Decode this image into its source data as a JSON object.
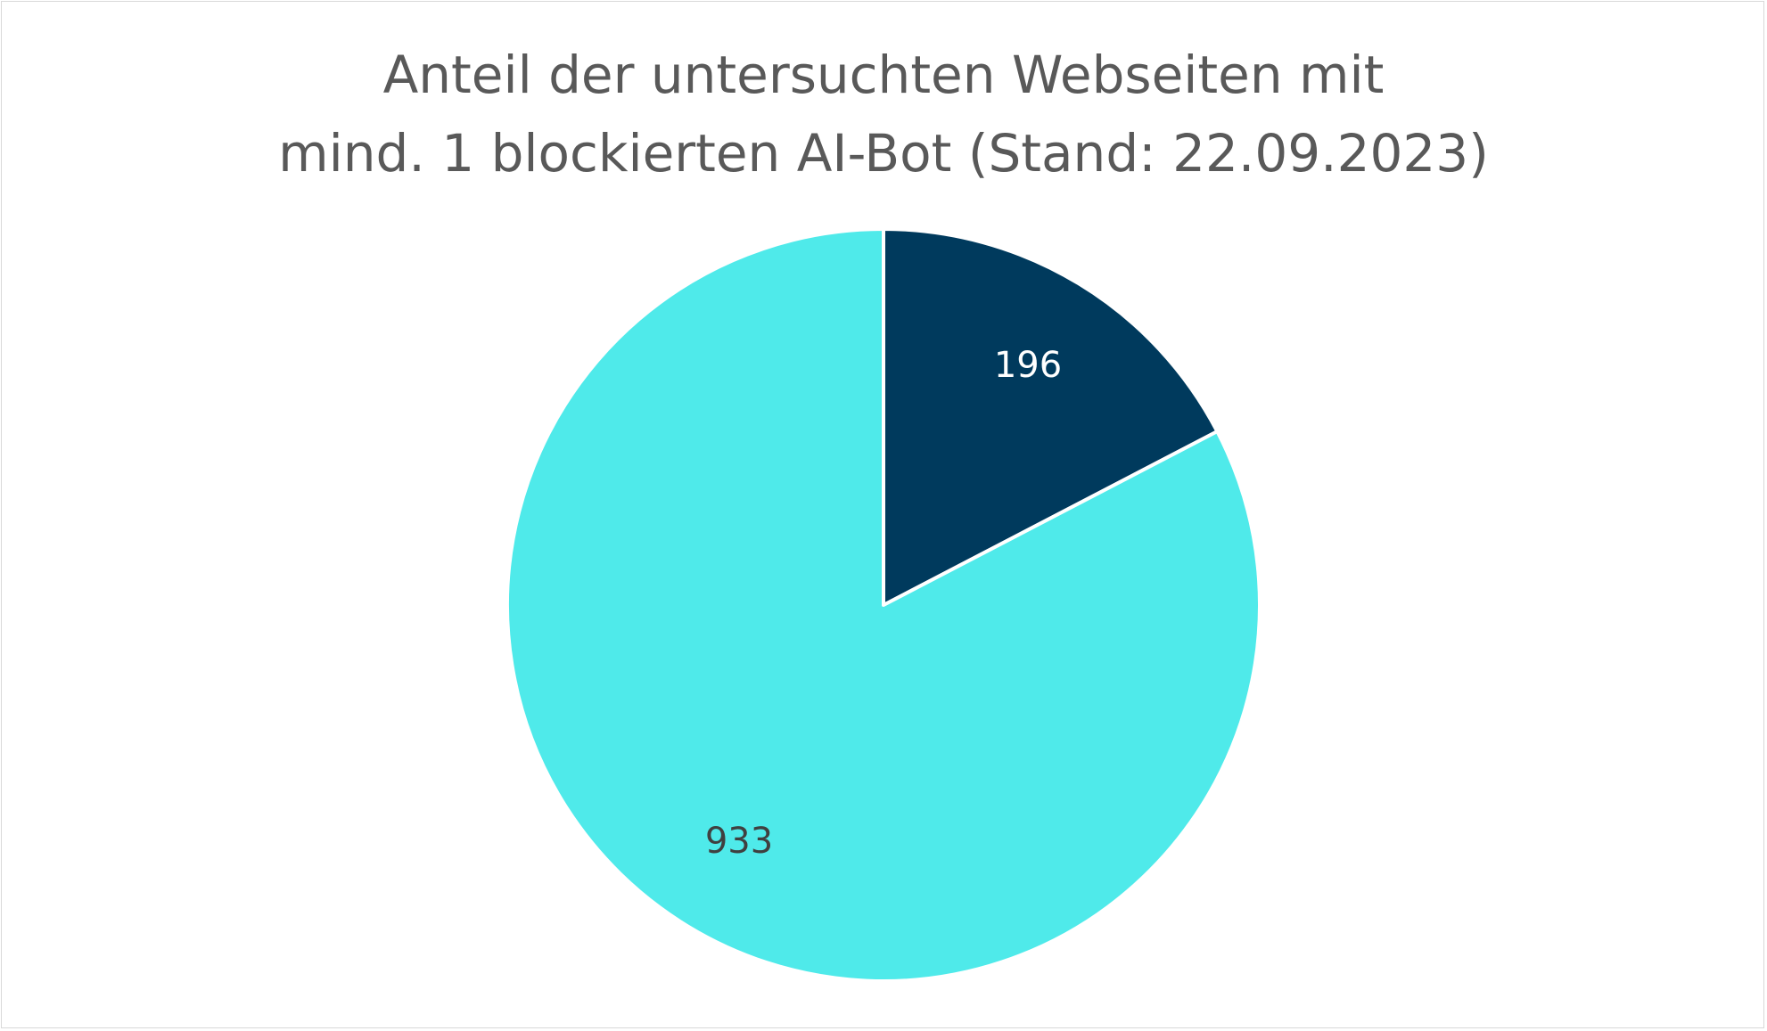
{
  "chart_data": {
    "type": "pie",
    "title_lines": [
      "Anteil der untersuchten Webseiten mit",
      "mind. 1 blockierten AI-Bot (Stand: 22.09.2023)"
    ],
    "slices": [
      {
        "value": 196,
        "label": "196",
        "color": "#003a5d",
        "label_color": "#ffffff"
      },
      {
        "value": 933,
        "label": "933",
        "color": "#4feaea",
        "label_color": "#404040"
      }
    ],
    "start_angle_deg": 0,
    "direction": "clockwise",
    "legend": "none"
  }
}
